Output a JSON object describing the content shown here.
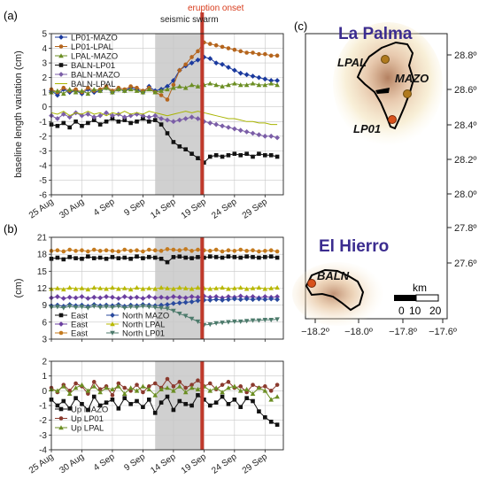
{
  "panel_labels": {
    "a": "(a)",
    "b": "(b)",
    "c": "(c)"
  },
  "annotations": {
    "seismic_swarm": "seismic swarm",
    "eruption_onset": "eruption onset"
  },
  "colors": {
    "eruption_line": "#c0392b",
    "swarm_shade": "#d0d0d0",
    "island_label": "#3b2c8f"
  },
  "chart_data": [
    {
      "id": "a",
      "type": "line",
      "ylabel": "baseline length variation (cm)",
      "ylim": [
        -6,
        5
      ],
      "yticks": [
        -6,
        -5,
        -4,
        -3,
        -2,
        -1,
        0,
        1,
        2,
        3,
        4,
        5
      ],
      "xlim": [
        0,
        38
      ],
      "xticks": [
        {
          "day": 0,
          "label": "25 Aug"
        },
        {
          "day": 5,
          "label": "30 Aug"
        },
        {
          "day": 10,
          "label": "4 Sep"
        },
        {
          "day": 15,
          "label": "9 Sep"
        },
        {
          "day": 20,
          "label": "14 Sep"
        },
        {
          "day": 25,
          "label": "19 Sep"
        },
        {
          "day": 30,
          "label": "24 Sep"
        },
        {
          "day": 35,
          "label": "29 Sep"
        }
      ],
      "grid": true,
      "legend": "top-left",
      "shade": {
        "from": 17,
        "to": 24.7
      },
      "event": 24.7,
      "series": [
        {
          "name": "LP01-MAZO",
          "color": "#1b3a9e",
          "marker": "diamond",
          "values": [
            1.1,
            0.8,
            1.2,
            1.0,
            1.1,
            0.9,
            1.2,
            1.0,
            1.1,
            1.3,
            1.0,
            1.2,
            1.1,
            1.3,
            1.2,
            1.0,
            1.4,
            1.1,
            1.2,
            1.4,
            1.8,
            2.5,
            2.8,
            3.0,
            3.2,
            3.4,
            3.3,
            3.0,
            2.9,
            2.7,
            2.5,
            2.3,
            2.2,
            2.1,
            2.0,
            1.9,
            1.8,
            1.8
          ]
        },
        {
          "name": "LP01-LPAL",
          "color": "#b5651d",
          "marker": "circle",
          "values": [
            1.2,
            1.0,
            1.3,
            1.1,
            1.2,
            1.0,
            1.3,
            1.1,
            1.2,
            1.4,
            1.1,
            1.3,
            1.2,
            1.4,
            1.3,
            1.1,
            1.3,
            1.0,
            0.8,
            0.5,
            1.5,
            2.5,
            2.9,
            3.4,
            3.8,
            4.4,
            4.3,
            4.2,
            4.1,
            4.0,
            3.9,
            3.8,
            3.7,
            3.7,
            3.6,
            3.6,
            3.5,
            3.5
          ]
        },
        {
          "name": "LPAL-MAZO",
          "color": "#6b8e23",
          "marker": "triangle",
          "values": [
            1.0,
            1.1,
            0.9,
            1.2,
            1.0,
            1.1,
            0.9,
            1.2,
            1.1,
            1.3,
            1.0,
            1.2,
            1.1,
            1.2,
            1.1,
            1.0,
            1.2,
            1.0,
            1.1,
            1.2,
            1.3,
            1.4,
            1.3,
            1.5,
            1.4,
            1.5,
            1.6,
            1.5,
            1.4,
            1.5,
            1.6,
            1.5,
            1.5,
            1.6,
            1.5,
            1.5,
            1.6,
            1.5
          ]
        },
        {
          "name": "BALN-LP01",
          "color": "#111111",
          "marker": "square",
          "values": [
            -1.2,
            -1.3,
            -1.1,
            -1.4,
            -1.0,
            -1.3,
            -1.1,
            -0.9,
            -1.2,
            -1.0,
            -0.8,
            -1.0,
            -0.9,
            -1.1,
            -1.0,
            -0.8,
            -1.0,
            -0.9,
            -1.2,
            -1.8,
            -2.4,
            -2.7,
            -2.9,
            -3.2,
            -3.5,
            -3.8,
            -3.4,
            -3.3,
            -3.4,
            -3.3,
            -3.2,
            -3.3,
            -3.2,
            -3.4,
            -3.2,
            -3.3,
            -3.3,
            -3.4
          ]
        },
        {
          "name": "BALN-MAZO",
          "color": "#7b5ea7",
          "marker": "diamond",
          "values": [
            -0.6,
            -0.8,
            -0.5,
            -0.7,
            -0.4,
            -0.6,
            -0.5,
            -0.7,
            -0.6,
            -0.4,
            -0.6,
            -0.5,
            -0.7,
            -0.6,
            -0.5,
            -0.6,
            -0.7,
            -0.6,
            -0.8,
            -0.9,
            -1.0,
            -0.9,
            -0.8,
            -0.7,
            -0.8,
            -1.0,
            -1.1,
            -1.2,
            -1.3,
            -1.4,
            -1.5,
            -1.6,
            -1.7,
            -1.8,
            -1.9,
            -2.0,
            -2.0,
            -2.1
          ]
        },
        {
          "name": "BALN-LPAL",
          "color": "#a8b400",
          "marker": "none",
          "values": [
            -0.4,
            -0.5,
            -0.3,
            -0.6,
            -0.4,
            -0.5,
            -0.3,
            -0.5,
            -0.4,
            -0.6,
            -0.4,
            -0.5,
            -0.3,
            -0.5,
            -0.4,
            -0.5,
            -0.3,
            -0.4,
            -0.5,
            -0.6,
            -0.5,
            -0.4,
            -0.3,
            -0.4,
            -0.3,
            -0.4,
            -0.5,
            -0.6,
            -0.7,
            -0.8,
            -0.8,
            -0.9,
            -1.0,
            -1.0,
            -1.1,
            -1.1,
            -1.2,
            -1.2
          ]
        }
      ]
    },
    {
      "id": "b1",
      "type": "line",
      "ylabel": "(cm)",
      "ylim": [
        3,
        21
      ],
      "yticks": [
        3,
        6,
        9,
        12,
        15,
        18,
        21
      ],
      "xlim": [
        0,
        38
      ],
      "grid": true,
      "legend": "bottom-left",
      "shade": {
        "from": 17,
        "to": 24.7
      },
      "event": 24.7,
      "series": [
        {
          "name": "East",
          "color": "#111111",
          "marker": "square",
          "values": [
            17.2,
            17.4,
            17.1,
            17.5,
            17.3,
            17.2,
            17.6,
            17.3,
            17.4,
            17.2,
            17.5,
            17.3,
            17.4,
            17.2,
            17.6,
            17.3,
            17.5,
            17.4,
            17.2,
            16.6,
            17.5,
            17.6,
            17.4,
            17.3,
            17.5,
            17.4,
            17.6,
            17.5,
            17.4,
            17.6,
            17.5,
            17.4,
            17.6,
            17.5,
            17.4,
            17.5,
            17.6,
            17.4
          ]
        },
        {
          "name": "East",
          "color": "#6b3fa0",
          "marker": "diamond",
          "values": [
            10.3,
            10.5,
            10.2,
            10.4,
            10.3,
            10.5,
            10.2,
            10.4,
            10.3,
            10.5,
            10.4,
            10.2,
            10.5,
            10.3,
            10.4,
            10.2,
            10.5,
            10.3,
            10.4,
            10.3,
            10.5,
            10.4,
            10.3,
            10.5,
            10.4,
            10.6,
            10.4,
            10.5,
            10.3,
            10.5,
            10.4,
            10.6,
            10.4,
            10.5,
            10.3,
            10.5,
            10.4,
            10.5
          ]
        },
        {
          "name": "East",
          "color": "#c47a1e",
          "marker": "circle",
          "values": [
            18.6,
            18.7,
            18.5,
            18.8,
            18.6,
            18.7,
            18.5,
            18.8,
            18.6,
            18.7,
            18.6,
            18.5,
            18.8,
            18.6,
            18.7,
            18.5,
            18.8,
            18.7,
            18.6,
            18.9,
            18.8,
            18.7,
            18.9,
            18.6,
            18.8,
            18.7,
            18.6,
            18.8,
            18.5,
            18.7,
            18.6,
            18.8,
            18.6,
            18.7,
            18.5,
            18.6,
            18.7,
            18.5
          ]
        },
        {
          "name": "North MAZO",
          "color": "#2a4a9e",
          "marker": "diamond",
          "values": [
            8.9,
            9.0,
            8.8,
            9.1,
            8.9,
            9.0,
            8.8,
            9.1,
            8.9,
            9.0,
            8.9,
            9.1,
            8.8,
            9.0,
            8.9,
            9.1,
            9.0,
            8.9,
            9.0,
            9.1,
            9.3,
            9.4,
            9.5,
            9.6,
            9.8,
            9.9,
            9.9,
            10.0,
            9.9,
            10.0,
            10.1,
            10.0,
            10.1,
            10.0,
            10.1,
            10.0,
            10.1,
            10.0
          ]
        },
        {
          "name": "North LPAL",
          "color": "#b8b800",
          "marker": "triangle",
          "values": [
            11.9,
            12.0,
            11.8,
            12.1,
            11.9,
            12.0,
            11.8,
            12.1,
            12.0,
            11.9,
            12.1,
            11.9,
            12.0,
            11.8,
            12.1,
            11.9,
            12.0,
            11.9,
            12.1,
            12.0,
            11.9,
            12.1,
            12.0,
            11.9,
            12.1,
            12.0,
            11.9,
            12.0,
            12.1,
            11.9,
            12.0,
            12.1,
            11.9,
            12.0,
            12.1,
            11.9,
            12.0,
            12.1
          ]
        },
        {
          "name": "North LP01",
          "color": "#4c7a6b",
          "marker": "triangle-down",
          "values": [
            8.6,
            8.7,
            8.5,
            8.8,
            8.6,
            8.7,
            8.5,
            8.8,
            8.6,
            8.7,
            8.6,
            8.8,
            8.5,
            8.7,
            8.6,
            8.8,
            8.7,
            8.6,
            8.5,
            8.4,
            8.0,
            7.5,
            7.1,
            6.6,
            6.1,
            5.5,
            5.6,
            5.8,
            5.9,
            6.0,
            6.1,
            6.1,
            6.2,
            6.3,
            6.3,
            6.4,
            6.4,
            6.5
          ]
        }
      ]
    },
    {
      "id": "b2",
      "type": "line",
      "ylim": [
        -4,
        2
      ],
      "yticks": [
        -4,
        -3,
        -2,
        -1,
        0,
        1,
        2
      ],
      "xlim": [
        0,
        38
      ],
      "xticks": [
        {
          "day": 0,
          "label": "25 Aug"
        },
        {
          "day": 5,
          "label": "30 Aug"
        },
        {
          "day": 10,
          "label": "4 Sep"
        },
        {
          "day": 15,
          "label": "9 Sep"
        },
        {
          "day": 20,
          "label": "14 Sep"
        },
        {
          "day": 25,
          "label": "19 Sep"
        },
        {
          "day": 30,
          "label": "24 Sep"
        },
        {
          "day": 35,
          "label": "29 Sep"
        }
      ],
      "grid": true,
      "legend": "bottom-left",
      "shade": {
        "from": 17,
        "to": 24.7
      },
      "event": 24.7,
      "series": [
        {
          "name": "Up MAZO",
          "color": "#111111",
          "marker": "square",
          "values": [
            -0.6,
            -1.0,
            -0.7,
            -1.2,
            -0.5,
            -0.9,
            -1.3,
            -0.4,
            -1.0,
            -0.8,
            -0.6,
            -1.2,
            -0.5,
            -0.9,
            -0.7,
            -1.1,
            -0.6,
            -1.5,
            -0.8,
            -0.4,
            -1.3,
            -0.7,
            -0.9,
            -1.0,
            -0.3,
            -0.6,
            -1.0,
            -0.8,
            -0.4,
            -0.9,
            -0.6,
            -1.1,
            -0.5,
            -0.7,
            -1.4,
            -1.8,
            -2.1,
            -2.3
          ]
        },
        {
          "name": "Up LP01",
          "color": "#8b3a2e",
          "marker": "circle",
          "values": [
            0.2,
            -0.1,
            0.4,
            0.0,
            0.5,
            0.3,
            -0.2,
            0.6,
            0.1,
            0.3,
            -0.3,
            0.5,
            0.2,
            0.0,
            0.4,
            -0.1,
            0.3,
            0.5,
            0.2,
            0.8,
            0.3,
            0.6,
            0.2,
            0.4,
            0.7,
            0.3,
            0.5,
            0.1,
            0.4,
            0.6,
            0.2,
            0.3,
            -0.1,
            0.4,
            0.2,
            0.3,
            0.0,
            0.4
          ]
        },
        {
          "name": "Up LPAL",
          "color": "#6b8e23",
          "marker": "triangle",
          "values": [
            0.1,
            0.0,
            0.3,
            -0.2,
            0.2,
            0.4,
            0.0,
            0.3,
            -0.1,
            0.2,
            0.1,
            0.3,
            -0.2,
            0.2,
            0.0,
            0.3,
            0.1,
            -0.3,
            0.1,
            0.2,
            0.0,
            0.3,
            -0.1,
            0.2,
            0.1,
            0.3,
            0.0,
            0.2,
            -0.1,
            0.2,
            0.3,
            0.0,
            0.1,
            -0.2,
            0.2,
            0.0,
            -0.6,
            -0.4
          ]
        }
      ]
    },
    {
      "id": "c",
      "type": "map",
      "islands": [
        {
          "name": "La Palma",
          "stations": [
            "LPAL",
            "MAZO",
            "LP01"
          ]
        },
        {
          "name": "El Hierro",
          "stations": [
            "BALN"
          ]
        }
      ],
      "yticks": [
        "28.8º",
        "28.6º",
        "28.4º",
        "28.2º",
        "28.0º",
        "27.8º",
        "27.6º"
      ],
      "xticks": [
        "−18.2º",
        "−18.0º",
        "−17.8º",
        "−17.6º"
      ],
      "scalebar": {
        "unit": "km",
        "labels": [
          "0",
          "10",
          "20"
        ]
      }
    }
  ]
}
